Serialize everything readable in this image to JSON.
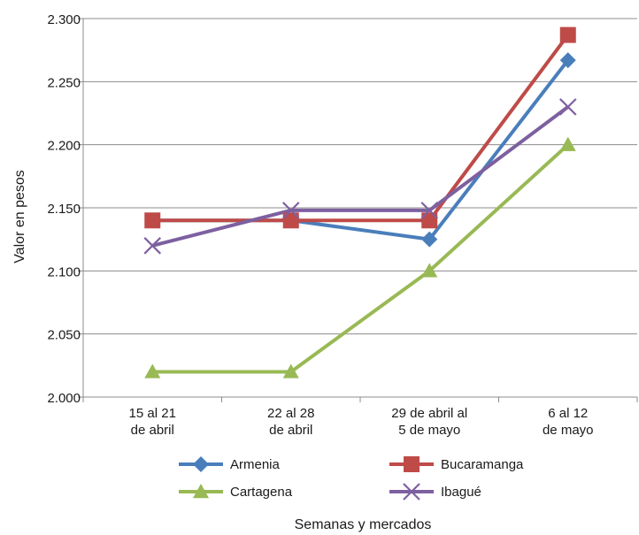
{
  "chart_data": {
    "type": "line",
    "title": "",
    "xlabel": "Semanas y mercados",
    "ylabel": "Valor en pesos",
    "categories": [
      [
        "15 al 21",
        "de abril"
      ],
      [
        "22 al 28",
        "de abril"
      ],
      [
        "29 de abril al",
        "5 de mayo"
      ],
      [
        "6 al 12",
        "de mayo"
      ]
    ],
    "ylim": [
      2000,
      2300
    ],
    "yticks": [
      {
        "value": 2000,
        "label": "2.000"
      },
      {
        "value": 2050,
        "label": "2.050"
      },
      {
        "value": 2100,
        "label": "2.100"
      },
      {
        "value": 2150,
        "label": "2.150"
      },
      {
        "value": 2200,
        "label": "2.200"
      },
      {
        "value": 2250,
        "label": "2.250"
      },
      {
        "value": 2300,
        "label": "2.300"
      }
    ],
    "grid": "horizontal",
    "legend_position": "bottom",
    "series": [
      {
        "name": "Armenia",
        "values": [
          2140,
          2140,
          2125,
          2267
        ],
        "color": "#4a7ebb",
        "marker": "diamond"
      },
      {
        "name": "Bucaramanga",
        "values": [
          2140,
          2140,
          2140,
          2287
        ],
        "color": "#be4b48",
        "marker": "square"
      },
      {
        "name": "Cartagena",
        "values": [
          2020,
          2020,
          2100,
          2200
        ],
        "color": "#98b954",
        "marker": "triangle"
      },
      {
        "name": "Ibagué",
        "values": [
          2120,
          2148,
          2148,
          2230
        ],
        "color": "#7d60a0",
        "marker": "x"
      }
    ]
  }
}
